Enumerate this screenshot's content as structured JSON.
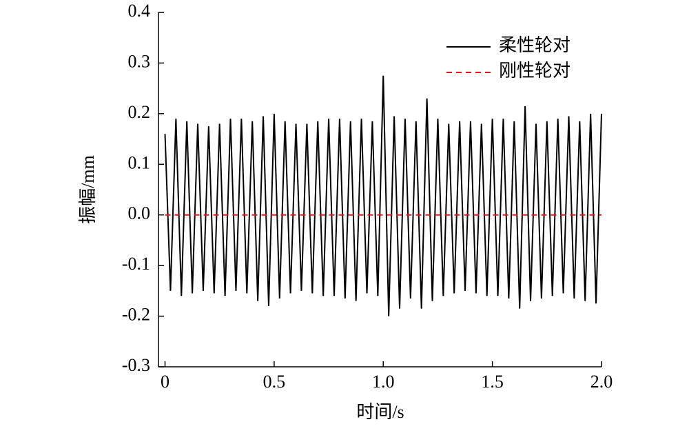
{
  "chart_data": {
    "type": "line",
    "xlabel": "时间/s",
    "ylabel": "振幅/mm",
    "xlim": [
      -0.03,
      2.0
    ],
    "xticks": [
      {
        "value": 0,
        "label": "0"
      },
      0.5,
      {
        "value": 1,
        "label": "1.0"
      },
      1.5,
      {
        "value": 2,
        "label": "2.0"
      }
    ],
    "ylim": [
      -0.3,
      0.4
    ],
    "yticks": [
      -0.3,
      -0.2,
      -0.1,
      {
        "value": 0,
        "label": "0.0"
      },
      0.1,
      0.2,
      0.3,
      0.4
    ],
    "legend": "top-right",
    "series": [
      {
        "name": "柔性轮对",
        "color": "#000000",
        "dash": false,
        "x": [
          0,
          0.025,
          0.05,
          0.075,
          0.1,
          0.125,
          0.15,
          0.175,
          0.2,
          0.225,
          0.25,
          0.275,
          0.3,
          0.325,
          0.35,
          0.375,
          0.4,
          0.425,
          0.45,
          0.475,
          0.5,
          0.525,
          0.55,
          0.575,
          0.6,
          0.625,
          0.65,
          0.675,
          0.7,
          0.725,
          0.75,
          0.775,
          0.8,
          0.825,
          0.85,
          0.875,
          0.9,
          0.925,
          0.95,
          0.975,
          1,
          1.025,
          1.05,
          1.075,
          1.1,
          1.125,
          1.15,
          1.175,
          1.2,
          1.225,
          1.25,
          1.275,
          1.3,
          1.325,
          1.35,
          1.375,
          1.4,
          1.425,
          1.45,
          1.475,
          1.5,
          1.525,
          1.55,
          1.575,
          1.6,
          1.625,
          1.65,
          1.675,
          1.7,
          1.725,
          1.75,
          1.775,
          1.8,
          1.825,
          1.85,
          1.875,
          1.9,
          1.925,
          1.95,
          1.975,
          2
        ],
        "values": [
          0.16,
          -0.15,
          0.19,
          -0.16,
          0.185,
          -0.155,
          0.18,
          -0.15,
          0.175,
          -0.155,
          0.18,
          -0.16,
          0.19,
          -0.15,
          0.19,
          -0.155,
          0.185,
          -0.17,
          0.195,
          -0.18,
          0.2,
          -0.165,
          0.185,
          -0.155,
          0.18,
          -0.15,
          0.18,
          -0.155,
          0.185,
          -0.16,
          0.19,
          -0.16,
          0.19,
          -0.165,
          0.185,
          -0.17,
          0.19,
          -0.155,
          0.185,
          -0.16,
          0.275,
          -0.2,
          0.195,
          -0.185,
          0.19,
          -0.165,
          0.185,
          -0.185,
          0.23,
          -0.17,
          0.19,
          -0.16,
          0.18,
          -0.155,
          0.185,
          -0.15,
          0.185,
          -0.155,
          0.18,
          -0.16,
          0.19,
          -0.16,
          0.19,
          -0.165,
          0.185,
          -0.185,
          0.215,
          -0.17,
          0.18,
          -0.165,
          0.185,
          -0.16,
          0.19,
          -0.155,
          0.195,
          -0.165,
          0.185,
          -0.17,
          0.2,
          -0.175,
          0.2
        ]
      },
      {
        "name": "刚性轮对",
        "color": "#e8141c",
        "dash": true,
        "x": [
          0,
          2
        ],
        "values": [
          0,
          0
        ]
      }
    ]
  }
}
